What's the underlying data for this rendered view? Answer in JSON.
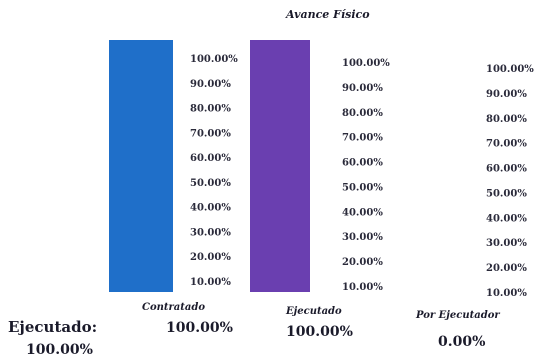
{
  "chart_data": {
    "type": "bar",
    "title": "Avance Físico",
    "categories": [
      "Contratado",
      "Ejecutado",
      "Por Ejecutador"
    ],
    "values": [
      100,
      100,
      0
    ],
    "value_labels": [
      "100.00%",
      "100.00%",
      "0.00%"
    ],
    "tick_labels": [
      "100.00%",
      "90.00%",
      "80.00%",
      "70.00%",
      "60.00%",
      "50.00%",
      "40.00%",
      "30.00%",
      "20.00%",
      "10.00%"
    ],
    "ylim": [
      0,
      100
    ],
    "colors": [
      "#1f6fc9",
      "#6a3fb0",
      "#ffffff"
    ]
  },
  "summary": {
    "label": "Ejecutado:",
    "value": "100.00%"
  }
}
